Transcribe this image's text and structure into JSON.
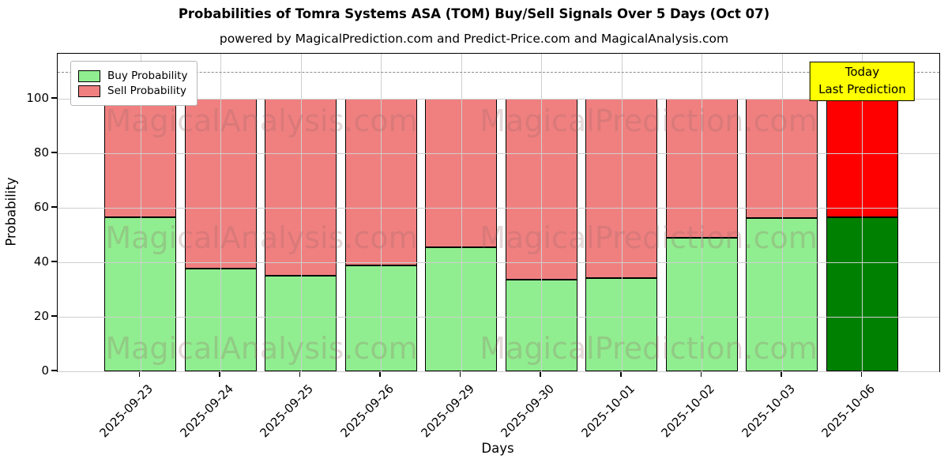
{
  "title": "Probabilities of Tomra Systems ASA (TOM) Buy/Sell Signals Over 5 Days (Oct 07)",
  "subtitle": "powered by MagicalPrediction.com and Predict-Price.com and MagicalAnalysis.com",
  "annotation": {
    "line1": "Today",
    "line2": "Last Prediction",
    "bg_color": "#FFFF00"
  },
  "watermarks": {
    "left_text": "MagicalAnalysis.com",
    "right_text": "MagicalPrediction.com"
  },
  "chart_data": {
    "type": "bar",
    "stacked": true,
    "title": "Probabilities of Tomra Systems ASA (TOM) Buy/Sell Signals Over 5 Days (Oct 07)",
    "xlabel": "Days",
    "ylabel": "Probability",
    "categories": [
      "2025-09-23",
      "2025-09-24",
      "2025-09-25",
      "2025-09-26",
      "2025-09-29",
      "2025-09-30",
      "2025-10-01",
      "2025-10-02",
      "2025-10-03",
      "2025-10-06"
    ],
    "series": [
      {
        "name": "Buy Probability",
        "color": "#90EE90",
        "today_color": "#008000",
        "values": [
          56.5,
          37.8,
          35.2,
          38.9,
          45.4,
          33.7,
          34.3,
          48.9,
          56.1,
          56.6
        ]
      },
      {
        "name": "Sell Probability",
        "color": "#F08080",
        "today_color": "#FF0000",
        "values": [
          43.5,
          62.2,
          64.8,
          61.1,
          54.6,
          66.3,
          65.7,
          51.1,
          43.9,
          43.4
        ]
      }
    ],
    "yticks": [
      0,
      20,
      40,
      60,
      80,
      100
    ],
    "ylim": [
      0,
      116.6
    ],
    "dashed_line_y": 110,
    "grid": true,
    "legend_position": "upper left",
    "today_index": 9
  }
}
